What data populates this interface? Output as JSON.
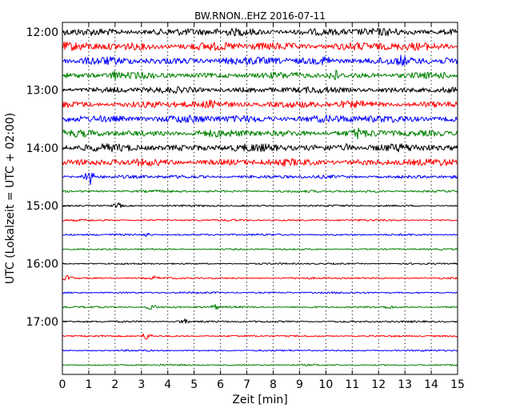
{
  "chart_data": {
    "type": "line",
    "title": "BW.RNON..EHZ 2016-07-11",
    "xlabel": "Zeit  [min]",
    "ylabel": "UTC (Lokalzeit = UTC + 02:00)",
    "xlim": [
      0,
      15
    ],
    "x_ticks": [
      "0",
      "1",
      "2",
      "3",
      "4",
      "5",
      "6",
      "7",
      "8",
      "9",
      "10",
      "11",
      "12",
      "13",
      "14",
      "15"
    ],
    "y_tick_labels": [
      "12:00",
      "13:00",
      "14:00",
      "15:00",
      "16:00",
      "17:00"
    ],
    "vertical_grid": true,
    "color_cycle": [
      "#000000",
      "#ff0000",
      "#0000ff",
      "#008000"
    ],
    "traces": [
      {
        "start": "12:00",
        "amplitude": 0.55,
        "events": []
      },
      {
        "start": "12:15",
        "amplitude": 0.6,
        "events": []
      },
      {
        "start": "12:30",
        "amplitude": 0.55,
        "events": [
          {
            "t": 10.0,
            "a": 0.9
          },
          {
            "t": 12.9,
            "a": 0.9
          }
        ]
      },
      {
        "start": "12:45",
        "amplitude": 0.45,
        "events": [
          {
            "t": 2.0,
            "a": 0.8
          },
          {
            "t": 10.3,
            "a": 1.0
          }
        ]
      },
      {
        "start": "13:00",
        "amplitude": 0.45,
        "events": []
      },
      {
        "start": "13:15",
        "amplitude": 0.5,
        "events": [
          {
            "t": 5.7,
            "a": 0.9
          },
          {
            "t": 9.2,
            "a": 0.6
          }
        ]
      },
      {
        "start": "13:30",
        "amplitude": 0.55,
        "events": [
          {
            "t": 4.5,
            "a": 0.6
          }
        ]
      },
      {
        "start": "13:45",
        "amplitude": 0.5,
        "events": [
          {
            "t": 11.2,
            "a": 0.9
          }
        ]
      },
      {
        "start": "14:00",
        "amplitude": 0.55,
        "events": [
          {
            "t": 10.8,
            "a": 0.6
          }
        ]
      },
      {
        "start": "14:15",
        "amplitude": 0.5,
        "events": []
      },
      {
        "start": "14:30",
        "amplitude": 0.25,
        "events": [
          {
            "t": 1.0,
            "a": 1.2
          }
        ]
      },
      {
        "start": "14:45",
        "amplitude": 0.18,
        "events": []
      },
      {
        "start": "15:00",
        "amplitude": 0.14,
        "events": [
          {
            "t": 2.1,
            "a": 0.4
          }
        ]
      },
      {
        "start": "15:15",
        "amplitude": 0.14,
        "events": []
      },
      {
        "start": "15:30",
        "amplitude": 0.14,
        "events": [
          {
            "t": 3.2,
            "a": 0.3
          }
        ]
      },
      {
        "start": "15:45",
        "amplitude": 0.12,
        "events": []
      },
      {
        "start": "16:00",
        "amplitude": 0.12,
        "events": []
      },
      {
        "start": "16:15",
        "amplitude": 0.13,
        "events": [
          {
            "t": 0.2,
            "a": 0.4
          },
          {
            "t": 3.5,
            "a": 0.3
          }
        ]
      },
      {
        "start": "16:30",
        "amplitude": 0.13,
        "events": []
      },
      {
        "start": "16:45",
        "amplitude": 0.14,
        "events": [
          {
            "t": 3.4,
            "a": 0.4
          },
          {
            "t": 5.8,
            "a": 0.4
          },
          {
            "t": 12.4,
            "a": 0.3
          }
        ]
      },
      {
        "start": "17:00",
        "amplitude": 0.14,
        "events": [
          {
            "t": 4.6,
            "a": 0.4
          }
        ]
      },
      {
        "start": "17:15",
        "amplitude": 0.13,
        "events": [
          {
            "t": 3.2,
            "a": 0.5
          }
        ]
      },
      {
        "start": "17:30",
        "amplitude": 0.12,
        "events": []
      },
      {
        "start": "17:45",
        "amplitude": 0.12,
        "events": []
      }
    ]
  }
}
